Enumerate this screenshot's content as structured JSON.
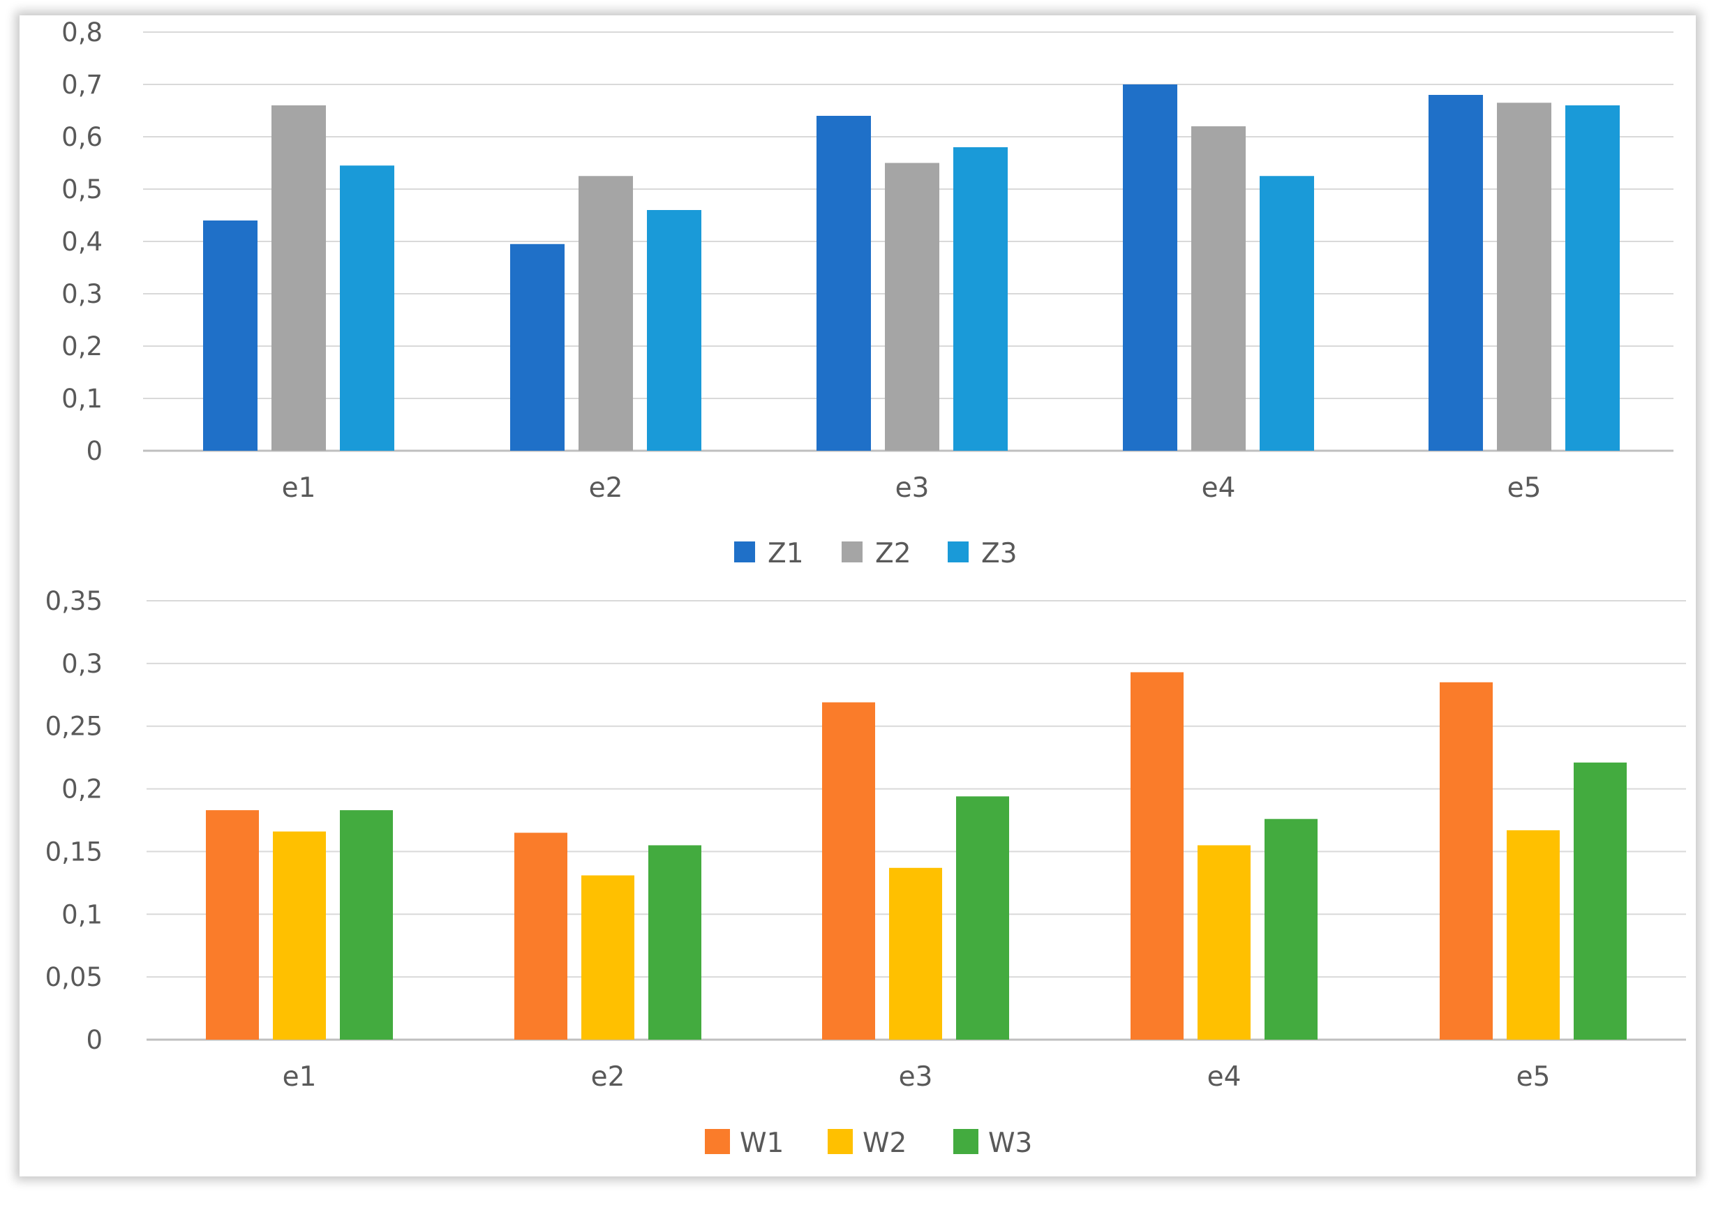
{
  "chart_data": [
    {
      "type": "bar",
      "categories": [
        "e1",
        "e2",
        "e3",
        "e4",
        "e5"
      ],
      "ylim": [
        0,
        0.8
      ],
      "yticks": [
        "0",
        "0,1",
        "0,2",
        "0,3",
        "0,4",
        "0,5",
        "0,6",
        "0,7",
        "0,8"
      ],
      "grid": true,
      "legend": "bottom-center",
      "series": [
        {
          "name": "Z1",
          "color": "#1f70c8",
          "values": [
            0.44,
            0.395,
            0.64,
            0.7,
            0.68
          ]
        },
        {
          "name": "Z2",
          "color": "#a5a5a5",
          "values": [
            0.66,
            0.525,
            0.55,
            0.62,
            0.665
          ]
        },
        {
          "name": "Z3",
          "color": "#1a9ad8",
          "values": [
            0.545,
            0.46,
            0.58,
            0.525,
            0.66
          ]
        }
      ]
    },
    {
      "type": "bar",
      "categories": [
        "e1",
        "e2",
        "e3",
        "e4",
        "e5"
      ],
      "ylim": [
        0,
        0.35
      ],
      "yticks": [
        "0",
        "0,05",
        "0,1",
        "0,15",
        "0,2",
        "0,25",
        "0,3",
        "0,35"
      ],
      "grid": true,
      "legend": "bottom-center",
      "series": [
        {
          "name": "W1",
          "color": "#fa7c2a",
          "values": [
            0.183,
            0.165,
            0.269,
            0.293,
            0.285
          ]
        },
        {
          "name": "W2",
          "color": "#ffc000",
          "values": [
            0.166,
            0.131,
            0.137,
            0.155,
            0.167
          ]
        },
        {
          "name": "W3",
          "color": "#43ab3f",
          "values": [
            0.183,
            0.155,
            0.194,
            0.176,
            0.221
          ]
        }
      ]
    }
  ]
}
